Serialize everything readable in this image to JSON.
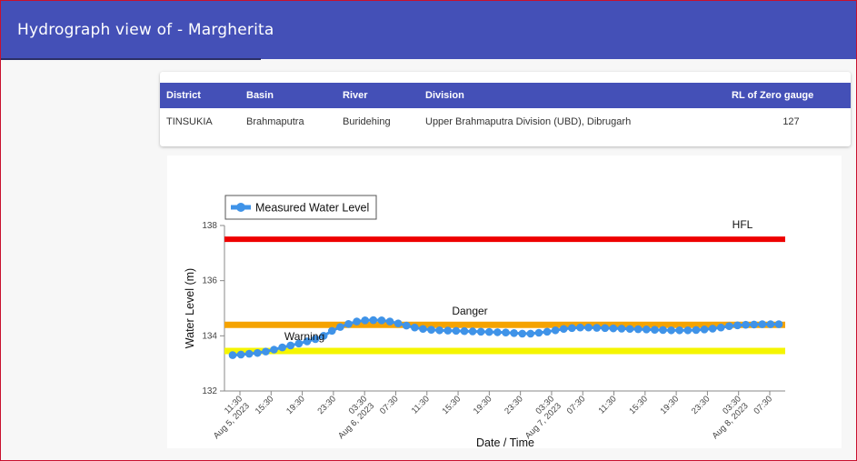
{
  "header": {
    "title": "Hydrograph view of - Margherita"
  },
  "station_table": {
    "columns": [
      "District",
      "Basin",
      "River",
      "Division",
      "RL of Zero gauge"
    ],
    "row": [
      "TINSUKIA",
      "Brahmaputra",
      "Buridehing",
      "Upper Brahmaputra Division (UBD), Dibrugarh",
      "127"
    ]
  },
  "colors": {
    "header_bg": "#4450b7",
    "series": "#3f93e8",
    "hfl": "#ee0000",
    "danger": "#f5a300",
    "warning": "#f5f500"
  },
  "chart_data": {
    "type": "line",
    "xlabel": "Date / Time",
    "ylabel": "Water Level (m)",
    "ylim": [
      132,
      138
    ],
    "yticks": [
      "132",
      "134",
      "136",
      "138"
    ],
    "xticks": [
      "11:30\nAug 5, 2023",
      "15:30",
      "19:30",
      "23:30",
      "03:30\nAug 6, 2023",
      "07:30",
      "11:30",
      "15:30",
      "19:30",
      "23:30",
      "03:30\nAug 7, 2023",
      "07:30",
      "11:30",
      "15:30",
      "19:30",
      "23:30",
      "03:30\nAug 8, 2023",
      "07:30"
    ],
    "legend": {
      "position": "top-left",
      "entries": [
        "Measured Water Level"
      ]
    },
    "reference_lines": [
      {
        "label": "HFL",
        "value": 137.5
      },
      {
        "label": "Danger",
        "value": 134.4
      },
      {
        "label": "Warning",
        "value": 133.45
      }
    ],
    "series": [
      {
        "name": "Measured Water Level",
        "values": [
          133.3,
          133.32,
          133.35,
          133.38,
          133.43,
          133.5,
          133.58,
          133.65,
          133.72,
          133.8,
          133.88,
          134.0,
          134.18,
          134.32,
          134.43,
          134.52,
          134.56,
          134.57,
          134.56,
          134.52,
          134.45,
          134.37,
          134.3,
          134.25,
          134.22,
          134.2,
          134.19,
          134.18,
          134.17,
          134.16,
          134.15,
          134.14,
          134.13,
          134.12,
          134.1,
          134.08,
          134.08,
          134.11,
          134.15,
          134.2,
          134.25,
          134.28,
          134.3,
          134.3,
          134.29,
          134.28,
          134.27,
          134.26,
          134.25,
          134.24,
          134.23,
          134.22,
          134.21,
          134.2,
          134.2,
          134.2,
          134.21,
          134.23,
          134.26,
          134.3,
          134.35,
          134.38,
          134.4,
          134.41,
          134.42,
          134.42,
          134.42
        ]
      }
    ]
  }
}
